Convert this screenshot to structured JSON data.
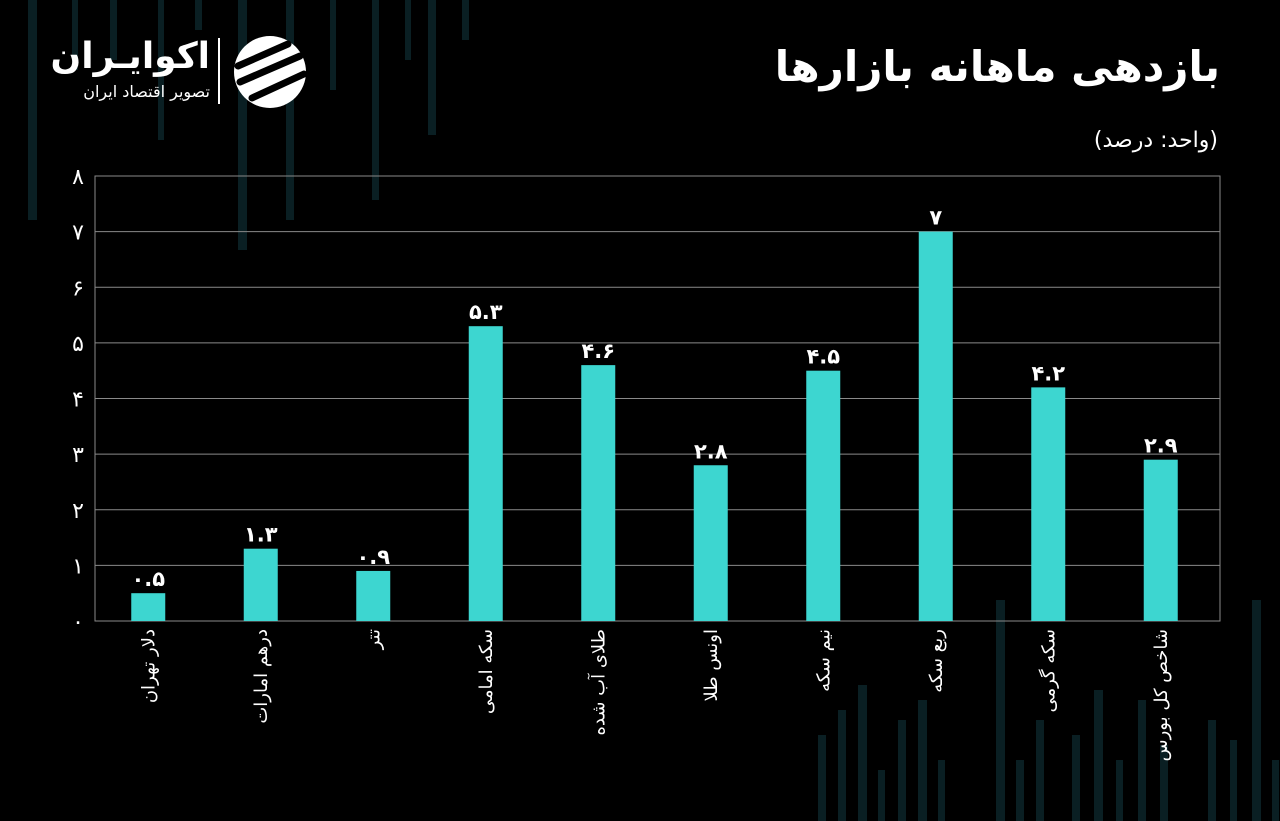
{
  "header": {
    "title": "بازدهی ماهانه بازارها",
    "unit": "(واحد: درصد)"
  },
  "logo": {
    "name": "اکوایـران",
    "tagline": "تصویر اقتصاد ایران"
  },
  "colors": {
    "bar": "#3dd6d0",
    "background": "#000000",
    "text": "#ffffff",
    "grid": "#8a8a8a"
  },
  "chart_data": {
    "type": "bar",
    "title": "بازدهی ماهانه بازارها",
    "ylabel": "(واحد: درصد)",
    "ylim": [
      0,
      8
    ],
    "grid": true,
    "yticks": [
      "۰",
      "۱",
      "۲",
      "۳",
      "۴",
      "۵",
      "۶",
      "۷",
      "۸"
    ],
    "categories": [
      "دلار تهران",
      "درهم امارات",
      "تتر",
      "سکه امامی",
      "طلای آب شده",
      "اونس طلا",
      "نیم سکه",
      "ربع سکه",
      "سکه گرمی",
      "شاخص کل بورس"
    ],
    "values": [
      0.5,
      1.3,
      0.9,
      5.3,
      4.6,
      2.8,
      4.5,
      7,
      4.2,
      2.9
    ],
    "value_labels": [
      "۰.۵",
      "۱.۳",
      "۰.۹",
      "۵.۳",
      "۴.۶",
      "۲.۸",
      "۴.۵",
      "۷",
      "۴.۲",
      "۲.۹"
    ]
  }
}
